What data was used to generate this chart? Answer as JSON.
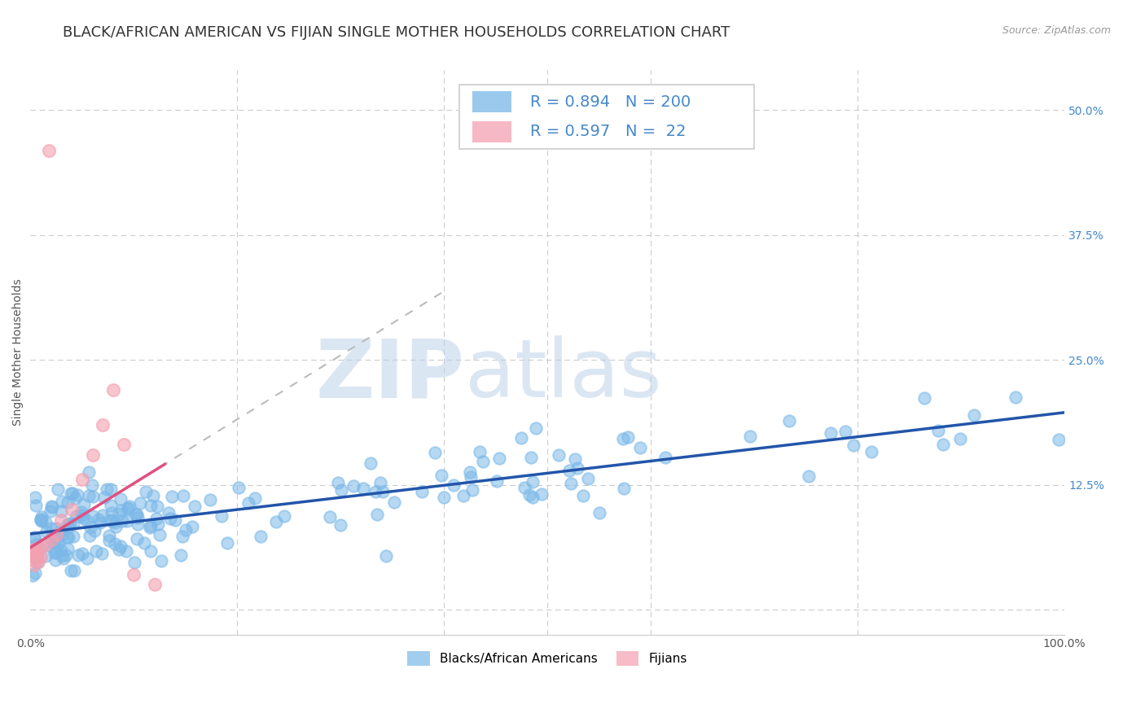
{
  "title": "BLACK/AFRICAN AMERICAN VS FIJIAN SINGLE MOTHER HOUSEHOLDS CORRELATION CHART",
  "source": "Source: ZipAtlas.com",
  "ylabel": "Single Mother Households",
  "xlim": [
    0,
    1.0
  ],
  "ylim": [
    -0.025,
    0.54
  ],
  "yticks": [
    0.0,
    0.125,
    0.25,
    0.375,
    0.5
  ],
  "ytick_labels": [
    "",
    "12.5%",
    "25.0%",
    "37.5%",
    "50.0%"
  ],
  "xticks": [
    0.0,
    0.2,
    0.4,
    0.6,
    0.8,
    1.0
  ],
  "xtick_labels": [
    "0.0%",
    "",
    "",
    "",
    "",
    "100.0%"
  ],
  "blue_R": 0.894,
  "blue_N": 200,
  "pink_R": 0.597,
  "pink_N": 22,
  "blue_color": "#7ab8e8",
  "pink_color": "#f4a0b0",
  "blue_line_color": "#2255aa",
  "pink_line_color": "#e05080",
  "watermark_zip_color": "#b8cfe8",
  "watermark_atlas_color": "#b8cfe8",
  "background_color": "#ffffff",
  "legend_label_blue": "Blacks/African Americans",
  "legend_label_pink": "Fijians",
  "title_fontsize": 13,
  "axis_label_fontsize": 10,
  "tick_fontsize": 10,
  "right_tick_color": "#4488cc",
  "grid_color": "#cccccc"
}
